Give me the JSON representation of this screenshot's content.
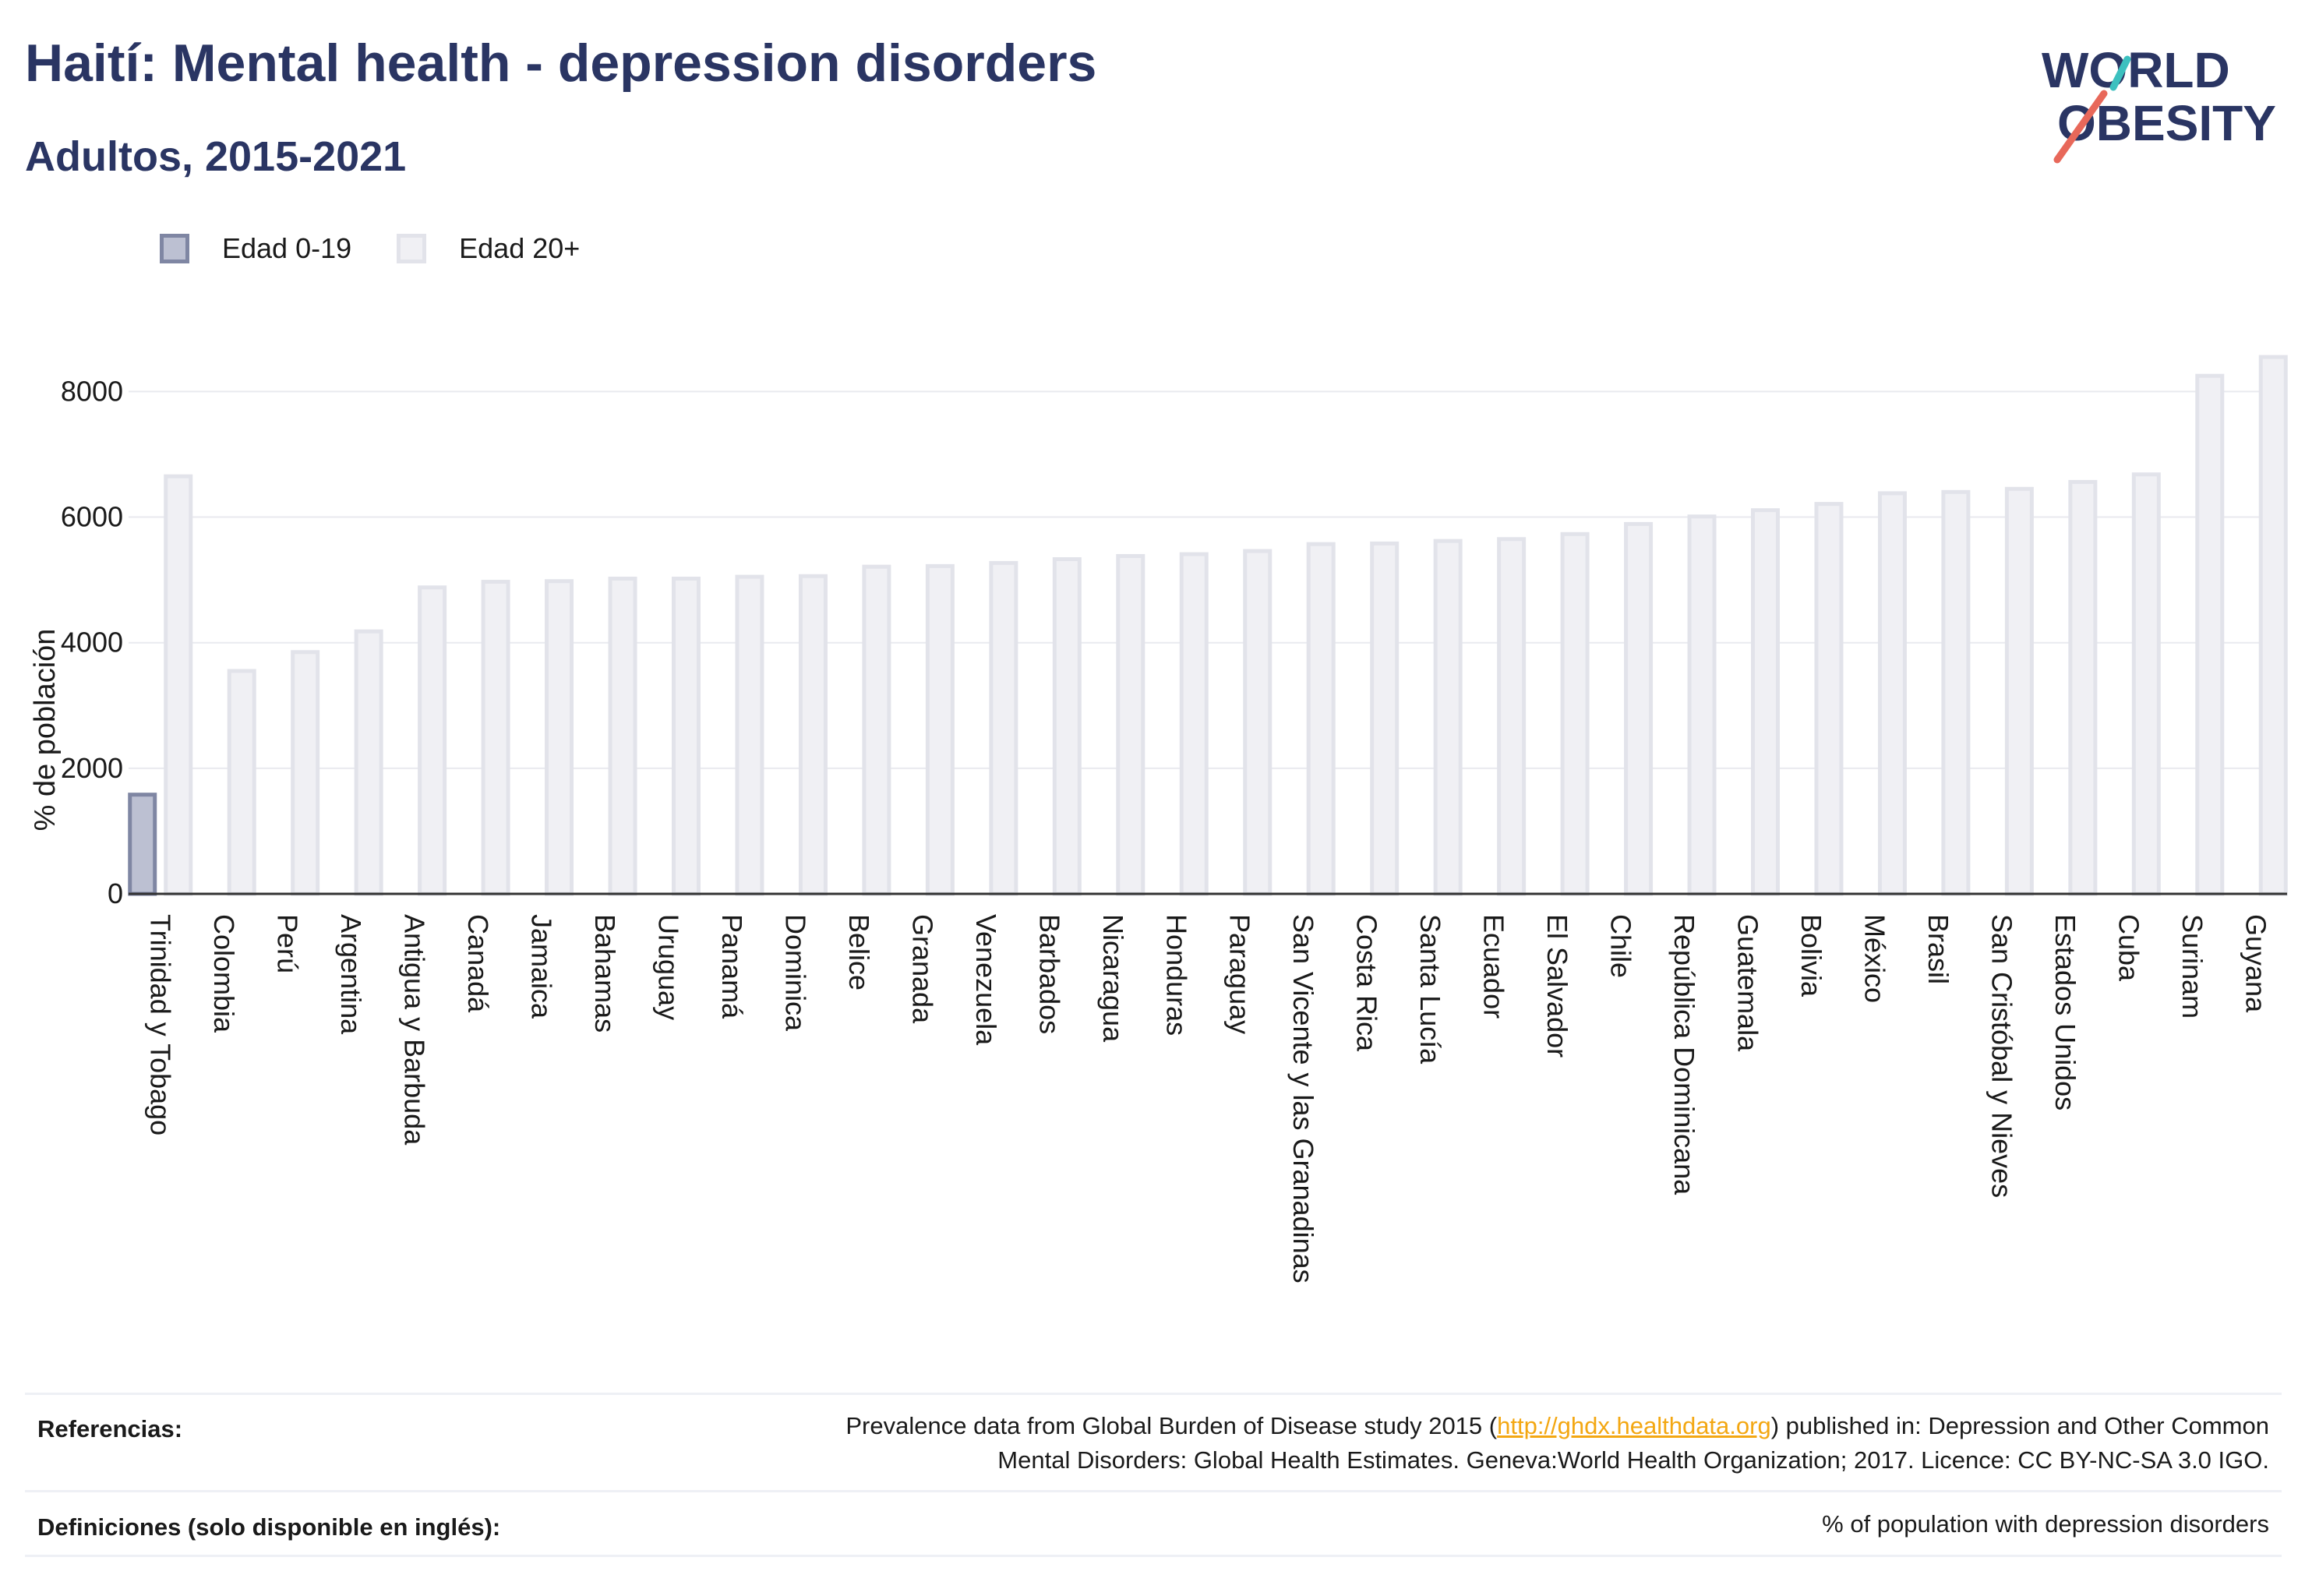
{
  "header": {
    "title": "Haití: Mental health - depression disorders",
    "subtitle": "Adultos, 2015-2021"
  },
  "logo": {
    "line1": "WORLD",
    "line2": "OBESITY",
    "colors": {
      "text": "#2a3563",
      "teal": "#3cc0bf",
      "coral": "#e8685a"
    }
  },
  "legend": [
    {
      "label": "Edad 0-19",
      "color": "#bcc0d2"
    },
    {
      "label": "Edad 20+",
      "color": "#f0f0f4"
    }
  ],
  "chart_data": {
    "type": "bar",
    "title": "",
    "xlabel": "",
    "ylabel": "% de población",
    "ylim": [
      0,
      8700
    ],
    "yticks": [
      0,
      2000,
      4000,
      6000,
      8000
    ],
    "grid": true,
    "legend_position": "top-left",
    "categories": [
      "Trinidad y Tobago",
      "Colombia",
      "Perú",
      "Argentina",
      "Antigua y Barbuda",
      "Canadá",
      "Jamaica",
      "Bahamas",
      "Uruguay",
      "Panamá",
      "Dominica",
      "Belice",
      "Granada",
      "Venezuela",
      "Barbados",
      "Nicaragua",
      "Honduras",
      "Paraguay",
      "San Vicente y las Granadinas",
      "Costa Rica",
      "Santa Lucía",
      "Ecuador",
      "El Salvador",
      "Chile",
      "República Dominicana",
      "Guatemala",
      "Bolivia",
      "México",
      "Brasil",
      "San Cristóbal y Nieves",
      "Estados Unidos",
      "Cuba",
      "Surinam",
      "Guyana"
    ],
    "series": [
      {
        "name": "Edad 0-19",
        "color": "#bcc0d2",
        "values": [
          1580,
          null,
          null,
          null,
          null,
          null,
          null,
          null,
          null,
          null,
          null,
          null,
          null,
          null,
          null,
          null,
          null,
          null,
          null,
          null,
          null,
          null,
          null,
          null,
          null,
          null,
          null,
          null,
          null,
          null,
          null,
          null,
          null,
          null
        ]
      },
      {
        "name": "Edad 20+",
        "color": "#f0f0f4",
        "values": [
          6650,
          3550,
          3850,
          4180,
          4880,
          4970,
          4980,
          5020,
          5020,
          5050,
          5060,
          5210,
          5220,
          5270,
          5330,
          5380,
          5410,
          5460,
          5570,
          5580,
          5620,
          5650,
          5730,
          5890,
          6010,
          6110,
          6210,
          6380,
          6400,
          6450,
          6560,
          6680,
          8250,
          8550
        ]
      }
    ]
  },
  "footer": {
    "references_label": "Referencias:",
    "references_pre": "Prevalence data from Global Burden of Disease study 2015 (",
    "references_link": "http://ghdx.healthdata.org",
    "references_post": ") published in: Depression and Other Common",
    "references_line2": "Mental Disorders: Global Health Estimates. Geneva:World Health Organization; 2017. Licence: CC BY-NC-SA 3.0 IGO.",
    "definitions_label": "Definiciones (solo disponible en inglés):",
    "definitions_text": "% of population with depression disorders"
  }
}
